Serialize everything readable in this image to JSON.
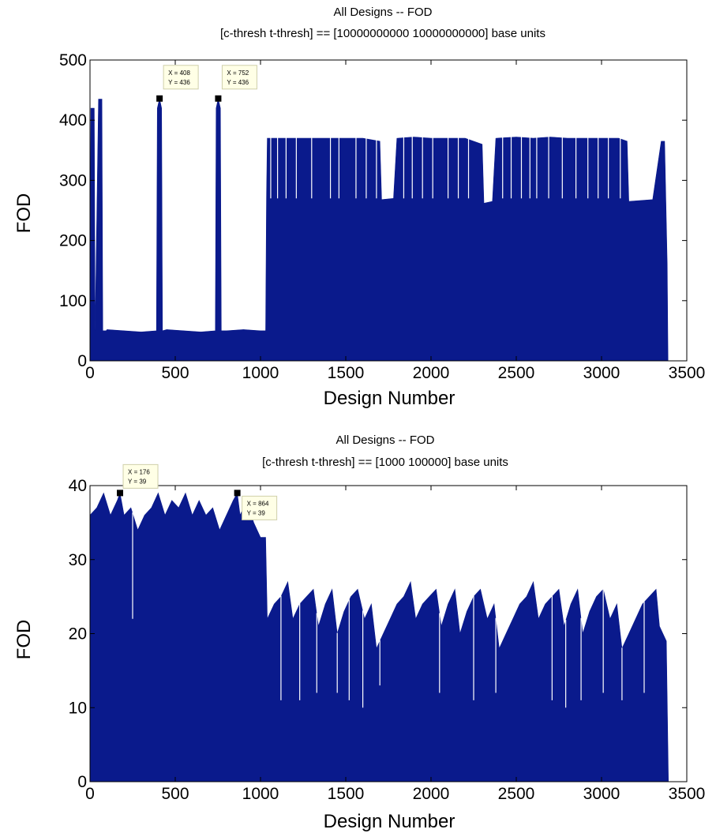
{
  "chart_data": [
    {
      "type": "bar",
      "title": "All Designs -- FOD",
      "subtitle": "[c-thresh t-thresh] == [10000000000 10000000000] base units",
      "xlabel": "Design Number",
      "ylabel": "FOD",
      "xlim": [
        0,
        3500
      ],
      "ylim": [
        0,
        500
      ],
      "xticks": [
        "0",
        "500",
        "1000",
        "1500",
        "2000",
        "2500",
        "3000",
        "3500"
      ],
      "yticks": [
        "0",
        "100",
        "200",
        "300",
        "400",
        "500"
      ],
      "color": "#0a1a8c",
      "grid": false,
      "profile": [
        [
          0,
          50
        ],
        [
          5,
          420
        ],
        [
          25,
          420
        ],
        [
          30,
          50
        ],
        [
          50,
          435
        ],
        [
          70,
          435
        ],
        [
          75,
          50
        ],
        [
          95,
          50
        ],
        [
          100,
          52
        ],
        [
          200,
          50
        ],
        [
          300,
          48
        ],
        [
          390,
          50
        ],
        [
          395,
          420
        ],
        [
          408,
          436
        ],
        [
          420,
          420
        ],
        [
          425,
          50
        ],
        [
          450,
          52
        ],
        [
          550,
          50
        ],
        [
          650,
          48
        ],
        [
          735,
          50
        ],
        [
          740,
          420
        ],
        [
          752,
          436
        ],
        [
          765,
          420
        ],
        [
          770,
          50
        ],
        [
          800,
          50
        ],
        [
          900,
          52
        ],
        [
          1000,
          50
        ],
        [
          1030,
          50
        ],
        [
          1035,
          270
        ],
        [
          1040,
          370
        ],
        [
          1100,
          370
        ],
        [
          1200,
          370
        ],
        [
          1300,
          370
        ],
        [
          1400,
          370
        ],
        [
          1500,
          370
        ],
        [
          1600,
          370
        ],
        [
          1700,
          365
        ],
        [
          1710,
          268
        ],
        [
          1780,
          270
        ],
        [
          1800,
          370
        ],
        [
          1900,
          372
        ],
        [
          2000,
          370
        ],
        [
          2100,
          370
        ],
        [
          2200,
          370
        ],
        [
          2300,
          360
        ],
        [
          2310,
          262
        ],
        [
          2360,
          265
        ],
        [
          2380,
          370
        ],
        [
          2500,
          372
        ],
        [
          2600,
          370
        ],
        [
          2700,
          372
        ],
        [
          2800,
          370
        ],
        [
          2900,
          370
        ],
        [
          3000,
          370
        ],
        [
          3100,
          370
        ],
        [
          3150,
          365
        ],
        [
          3160,
          265
        ],
        [
          3300,
          268
        ],
        [
          3350,
          365
        ],
        [
          3370,
          365
        ],
        [
          3385,
          160
        ],
        [
          3390,
          0
        ]
      ],
      "dips": [
        [
          1060,
          270
        ],
        [
          1100,
          270
        ],
        [
          1150,
          270
        ],
        [
          1210,
          270
        ],
        [
          1300,
          270
        ],
        [
          1410,
          270
        ],
        [
          1460,
          270
        ],
        [
          1560,
          270
        ],
        [
          1620,
          270
        ],
        [
          1680,
          270
        ],
        [
          1840,
          270
        ],
        [
          1890,
          270
        ],
        [
          1950,
          270
        ],
        [
          2010,
          270
        ],
        [
          2100,
          270
        ],
        [
          2160,
          270
        ],
        [
          2220,
          270
        ],
        [
          2420,
          270
        ],
        [
          2470,
          270
        ],
        [
          2530,
          270
        ],
        [
          2580,
          270
        ],
        [
          2620,
          270
        ],
        [
          2690,
          270
        ],
        [
          2770,
          270
        ],
        [
          2850,
          270
        ],
        [
          2920,
          270
        ],
        [
          2980,
          270
        ],
        [
          3040,
          270
        ],
        [
          3110,
          270
        ]
      ],
      "annotations": [
        {
          "x": 408,
          "y": 436,
          "line1": "X = 408",
          "line2": "Y = 436"
        },
        {
          "x": 752,
          "y": 436,
          "line1": "X = 752",
          "line2": "Y = 436"
        }
      ]
    },
    {
      "type": "bar",
      "title": "All Designs -- FOD",
      "subtitle": "[c-thresh t-thresh] == [1000 100000] base units",
      "xlabel": "Design Number",
      "ylabel": "FOD",
      "xlim": [
        0,
        3500
      ],
      "ylim": [
        0,
        40
      ],
      "xticks": [
        "0",
        "500",
        "1000",
        "1500",
        "2000",
        "2500",
        "3000",
        "3500"
      ],
      "yticks": [
        "0",
        "10",
        "20",
        "30",
        "40"
      ],
      "color": "#0a1a8c",
      "grid": false,
      "profile": [
        [
          0,
          36
        ],
        [
          40,
          37
        ],
        [
          80,
          39
        ],
        [
          120,
          36
        ],
        [
          160,
          38
        ],
        [
          176,
          39
        ],
        [
          200,
          36
        ],
        [
          240,
          37
        ],
        [
          280,
          34
        ],
        [
          320,
          36
        ],
        [
          360,
          37
        ],
        [
          400,
          39
        ],
        [
          440,
          36
        ],
        [
          480,
          38
        ],
        [
          520,
          37
        ],
        [
          560,
          39
        ],
        [
          600,
          36
        ],
        [
          640,
          38
        ],
        [
          680,
          36
        ],
        [
          720,
          37
        ],
        [
          760,
          34
        ],
        [
          800,
          36
        ],
        [
          840,
          38
        ],
        [
          864,
          39
        ],
        [
          880,
          36
        ],
        [
          920,
          38
        ],
        [
          960,
          35
        ],
        [
          1000,
          33
        ],
        [
          1030,
          33
        ],
        [
          1040,
          22
        ],
        [
          1080,
          24
        ],
        [
          1120,
          25
        ],
        [
          1160,
          27
        ],
        [
          1190,
          22
        ],
        [
          1230,
          24
        ],
        [
          1270,
          25
        ],
        [
          1310,
          26
        ],
        [
          1340,
          21
        ],
        [
          1380,
          24
        ],
        [
          1420,
          26
        ],
        [
          1450,
          20
        ],
        [
          1490,
          23
        ],
        [
          1530,
          25
        ],
        [
          1570,
          26
        ],
        [
          1610,
          22
        ],
        [
          1650,
          24
        ],
        [
          1680,
          18
        ],
        [
          1720,
          20
        ],
        [
          1760,
          22
        ],
        [
          1800,
          24
        ],
        [
          1840,
          25
        ],
        [
          1880,
          27
        ],
        [
          1910,
          22
        ],
        [
          1950,
          24
        ],
        [
          1990,
          25
        ],
        [
          2030,
          26
        ],
        [
          2060,
          21
        ],
        [
          2100,
          24
        ],
        [
          2140,
          26
        ],
        [
          2170,
          20
        ],
        [
          2210,
          23
        ],
        [
          2250,
          25
        ],
        [
          2290,
          26
        ],
        [
          2330,
          22
        ],
        [
          2370,
          24
        ],
        [
          2400,
          18
        ],
        [
          2440,
          20
        ],
        [
          2480,
          22
        ],
        [
          2520,
          24
        ],
        [
          2560,
          25
        ],
        [
          2600,
          27
        ],
        [
          2630,
          22
        ],
        [
          2670,
          24
        ],
        [
          2710,
          25
        ],
        [
          2750,
          26
        ],
        [
          2780,
          21
        ],
        [
          2820,
          24
        ],
        [
          2860,
          26
        ],
        [
          2890,
          20
        ],
        [
          2930,
          23
        ],
        [
          2970,
          25
        ],
        [
          3010,
          26
        ],
        [
          3050,
          22
        ],
        [
          3090,
          24
        ],
        [
          3120,
          18
        ],
        [
          3160,
          20
        ],
        [
          3200,
          22
        ],
        [
          3240,
          24
        ],
        [
          3280,
          25
        ],
        [
          3320,
          26
        ],
        [
          3340,
          21
        ],
        [
          3380,
          19
        ],
        [
          3392,
          0
        ]
      ],
      "dips": [
        [
          250,
          22
        ],
        [
          1120,
          11
        ],
        [
          1230,
          11
        ],
        [
          1330,
          12
        ],
        [
          1450,
          12
        ],
        [
          1520,
          11
        ],
        [
          1600,
          10
        ],
        [
          1700,
          13
        ],
        [
          2050,
          12
        ],
        [
          2250,
          11
        ],
        [
          2380,
          12
        ],
        [
          2710,
          11
        ],
        [
          2790,
          10
        ],
        [
          2880,
          11
        ],
        [
          3010,
          12
        ],
        [
          3120,
          11
        ],
        [
          3250,
          12
        ]
      ],
      "annotations": [
        {
          "x": 176,
          "y": 39,
          "line1": "X = 176",
          "line2": "Y = 39"
        },
        {
          "x": 864,
          "y": 39,
          "line1": "X = 864",
          "line2": "Y = 39"
        }
      ]
    }
  ]
}
